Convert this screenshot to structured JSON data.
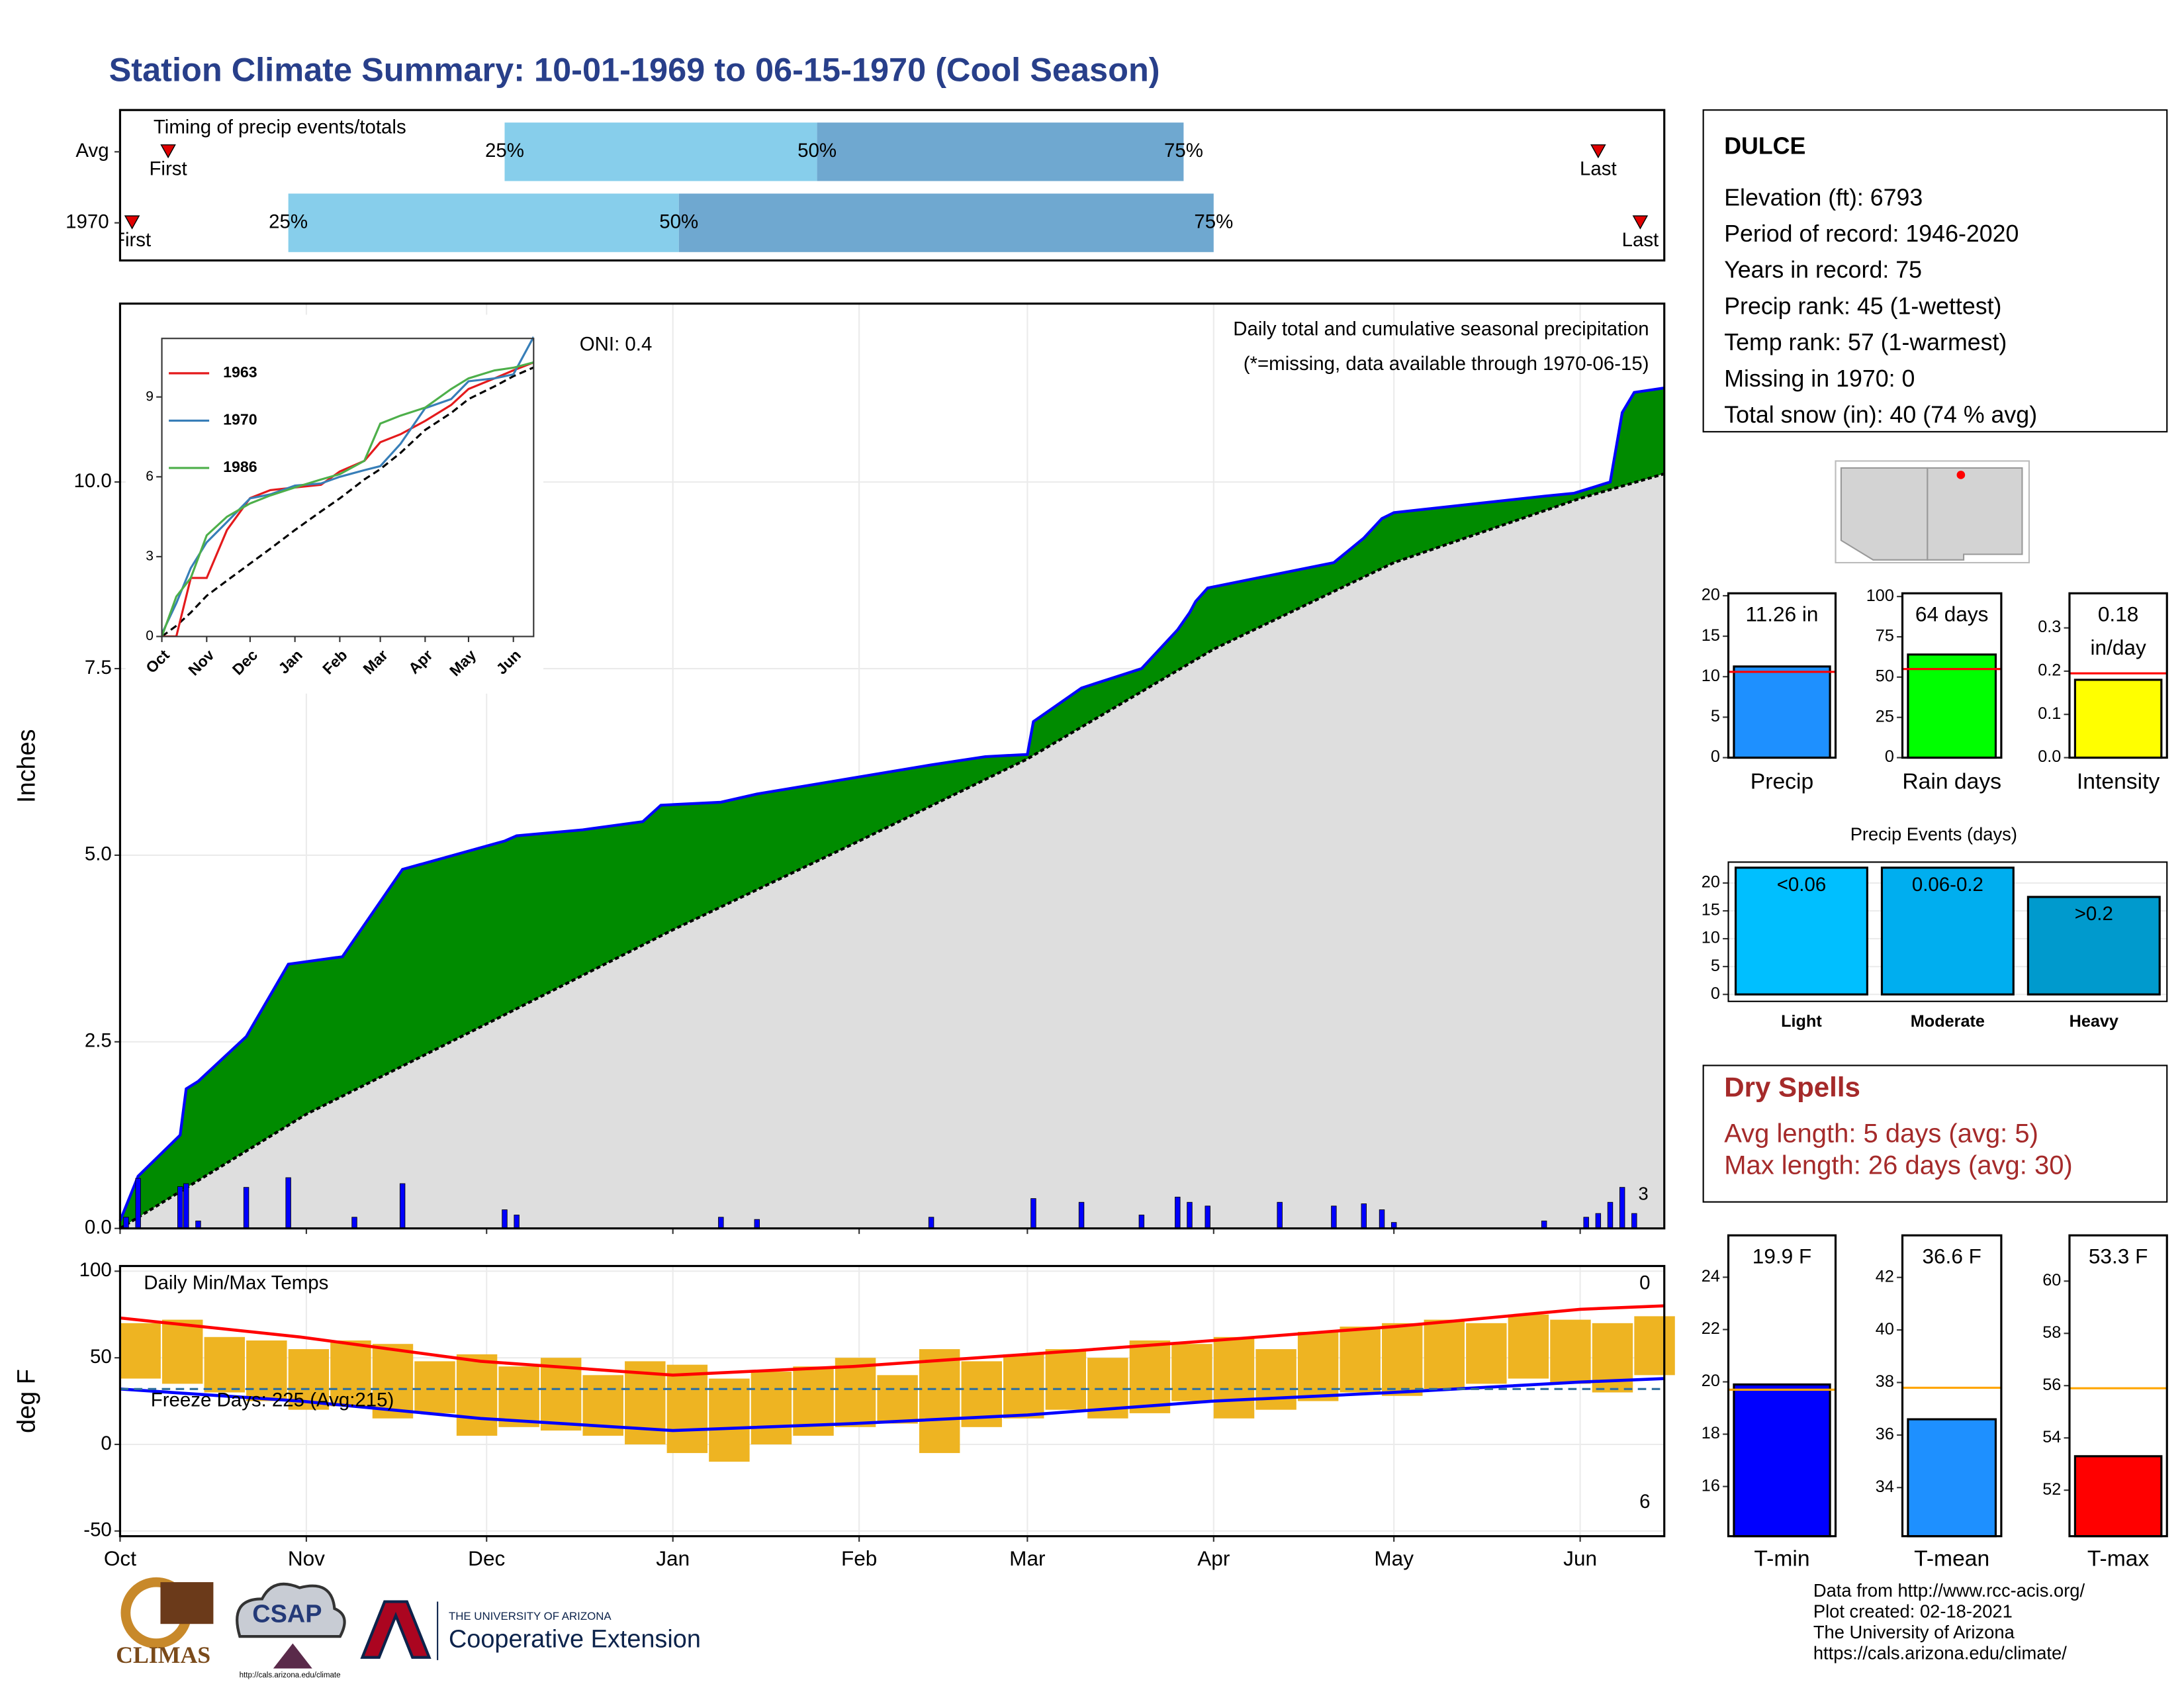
{
  "title": "Station Climate Summary: 10-01-1969 to 06-15-1970 (Cool Season)",
  "station": {
    "name": "DULCE",
    "lines": [
      "Elevation (ft): 6793",
      "Period of record: 1946-2020",
      "Years in record: 75",
      "Precip rank: 45 (1-wettest)",
      "Temp rank: 57 (1-warmest)",
      "Missing in 1970: 0",
      "Total snow (in): 40 (74 % avg)"
    ]
  },
  "dry_spells": {
    "title": "Dry Spells",
    "lines": [
      "Avg length: 5 days (avg: 5)",
      "Max length: 26 days (avg: 30)"
    ]
  },
  "footer": {
    "lines": [
      "Data from http://www.rcc-acis.org/",
      "Plot created: 02-18-2021",
      "The University of Arizona",
      "https://cals.arizona.edu/climate/"
    ]
  },
  "logos": {
    "climas": "CLIMAS",
    "csap": "CSAP",
    "csap_url": "http://cals.arizona.edu/climate",
    "university": "THE UNIVERSITY OF ARIZONA",
    "extension": "Cooperative Extension"
  },
  "chart_data": [
    {
      "type": "timing",
      "title": "Timing of precip events/totals",
      "rows": [
        "Avg",
        "1970"
      ],
      "xlim": [
        0,
        257
      ],
      "first": [
        8,
        2
      ],
      "q25": [
        64,
        28
      ],
      "q50": [
        116,
        93
      ],
      "q75": [
        177,
        182
      ],
      "last": [
        246,
        253
      ],
      "first_label": "First",
      "last_label": "Last",
      "quartile_labels": [
        "25%",
        "50%",
        "75%"
      ],
      "colors": [
        "#87ceeb",
        "#6fa8d0"
      ],
      "marker_color": "#e00000"
    },
    {
      "type": "area",
      "title": "Daily total and cumulative seasonal precipitation",
      "subtitle": "(*=missing, data available through 1970-06-15)",
      "annotation": "ONI: 0.4",
      "corner_note": "3",
      "ylabel": "Inches",
      "xlim": [
        0,
        257
      ],
      "ylim": [
        0,
        12.39
      ],
      "yticks": [
        {
          "value": 0,
          "label": "0.0"
        },
        {
          "value": 2.5,
          "label": "2.5"
        },
        {
          "value": 5,
          "label": "5.0"
        },
        {
          "value": 7.5,
          "label": "7.5"
        },
        {
          "value": 10,
          "label": "10.0"
        }
      ],
      "grid": true,
      "colors": {
        "above": "#008b00",
        "below": "#8b5a2b",
        "common": "#dedede",
        "line": "#0000ff",
        "average_line": "#000000",
        "daily": "#0000ff"
      },
      "cumulative": {
        "x": [
          0,
          3,
          10,
          11,
          13,
          21,
          28,
          37,
          47,
          64,
          66,
          77,
          87,
          90,
          100,
          106,
          135,
          144,
          151,
          152,
          160,
          170,
          176,
          178,
          179,
          181,
          202,
          207,
          210,
          212,
          237,
          242,
          248,
          250,
          252,
          257
        ],
        "values": [
          0.1,
          0.7,
          1.25,
          1.87,
          1.97,
          2.57,
          3.54,
          3.64,
          4.81,
          5.19,
          5.26,
          5.34,
          5.45,
          5.67,
          5.71,
          5.82,
          6.21,
          6.32,
          6.35,
          6.79,
          7.24,
          7.5,
          8.02,
          8.25,
          8.4,
          8.58,
          8.92,
          9.25,
          9.51,
          9.59,
          9.81,
          9.85,
          10.0,
          10.93,
          11.2,
          11.26
        ]
      },
      "average": {
        "x": [
          0,
          31,
          61,
          92,
          123,
          151,
          182,
          212,
          243,
          257
        ],
        "values": [
          0,
          1.53,
          2.74,
          4.0,
          5.19,
          6.29,
          7.76,
          8.92,
          9.78,
          10.11
        ]
      },
      "daily": {
        "x": [
          1,
          3,
          10,
          11,
          13,
          21,
          28,
          39,
          47,
          64,
          66,
          100,
          106,
          135,
          152,
          160,
          170,
          176,
          178,
          181,
          193,
          202,
          207,
          210,
          212,
          237,
          244,
          246,
          248,
          250,
          252
        ],
        "values": [
          0.15,
          0.67,
          0.56,
          0.6,
          0.1,
          0.55,
          0.68,
          0.15,
          0.6,
          0.25,
          0.18,
          0.15,
          0.12,
          0.15,
          0.4,
          0.35,
          0.18,
          0.42,
          0.35,
          0.3,
          0.35,
          0.3,
          0.33,
          0.25,
          0.08,
          0.1,
          0.15,
          0.2,
          0.35,
          0.55,
          0.2
        ]
      }
    },
    {
      "type": "line",
      "xlim": [
        0,
        257
      ],
      "ylim": [
        0,
        11.2
      ],
      "yticks": [
        0,
        3,
        6,
        9
      ],
      "xticks": [
        {
          "value": 0,
          "label": "Oct"
        },
        {
          "value": 31,
          "label": "Nov"
        },
        {
          "value": 61,
          "label": "Dec"
        },
        {
          "value": 92,
          "label": "Jan"
        },
        {
          "value": 123,
          "label": "Feb"
        },
        {
          "value": 151,
          "label": "Mar"
        },
        {
          "value": 182,
          "label": "Apr"
        },
        {
          "value": 212,
          "label": "May"
        },
        {
          "value": 243,
          "label": "Jun"
        }
      ],
      "x": [
        0,
        10,
        20,
        31,
        45,
        61,
        75,
        92,
        110,
        123,
        140,
        151,
        165,
        182,
        200,
        212,
        230,
        243,
        257
      ],
      "series": [
        {
          "name": "1963",
          "color": "#e41a1c",
          "values": [
            0,
            0,
            2.2,
            2.2,
            4.0,
            5.2,
            5.5,
            5.6,
            5.7,
            6.2,
            6.6,
            7.3,
            7.6,
            8.1,
            8.7,
            9.3,
            9.7,
            10.0,
            10.3
          ]
        },
        {
          "name": "1970",
          "color": "#377eb8",
          "values": [
            0.1,
            1.25,
            2.57,
            3.54,
            4.3,
            5.19,
            5.34,
            5.67,
            5.75,
            6.0,
            6.25,
            6.4,
            7.24,
            8.58,
            8.92,
            9.59,
            9.7,
            9.85,
            11.26
          ]
        },
        {
          "name": "1986",
          "color": "#4daf4a",
          "values": [
            0,
            1.5,
            2.2,
            3.8,
            4.5,
            5.0,
            5.3,
            5.6,
            5.9,
            6.1,
            6.6,
            8.0,
            8.3,
            8.6,
            9.3,
            9.7,
            10.0,
            10.1,
            10.3
          ]
        }
      ],
      "average": {
        "color": "#000000",
        "values": [
          0,
          0.4,
          0.9,
          1.53,
          2.1,
          2.74,
          3.3,
          4.0,
          4.7,
          5.19,
          5.9,
          6.29,
          6.9,
          7.76,
          8.4,
          8.92,
          9.4,
          9.78,
          10.11
        ]
      }
    },
    {
      "type": "range_bar",
      "title": "Daily Min/Max Temps",
      "ylabel": "deg F",
      "annotation": "Freeze Days: 225 (Avg:215)",
      "top_note": "0",
      "bottom_note": "6",
      "xlim": [
        0,
        257
      ],
      "ylim": [
        -53,
        103
      ],
      "yticks": [
        -50,
        0,
        50,
        100
      ],
      "grid": true,
      "freeze": 32,
      "xticks": [
        {
          "value": 0,
          "label": "Oct"
        },
        {
          "value": 31,
          "label": "Nov"
        },
        {
          "value": 61,
          "label": "Dec"
        },
        {
          "value": 92,
          "label": "Jan"
        },
        {
          "value": 123,
          "label": "Feb"
        },
        {
          "value": 151,
          "label": "Mar"
        },
        {
          "value": 182,
          "label": "Apr"
        },
        {
          "value": 212,
          "label": "May"
        },
        {
          "value": 243,
          "label": "Jun"
        }
      ],
      "bars": {
        "color": "#eeb422",
        "x": [
          0,
          7,
          14,
          21,
          28,
          35,
          42,
          49,
          56,
          63,
          70,
          77,
          84,
          91,
          98,
          105,
          112,
          119,
          126,
          133,
          140,
          147,
          154,
          161,
          168,
          175,
          182,
          189,
          196,
          203,
          210,
          217,
          224,
          231,
          238,
          245,
          252
        ],
        "max": [
          70,
          72,
          62,
          60,
          55,
          60,
          58,
          48,
          52,
          45,
          50,
          40,
          48,
          46,
          38,
          42,
          45,
          50,
          40,
          55,
          48,
          52,
          55,
          50,
          60,
          58,
          62,
          55,
          65,
          68,
          70,
          72,
          70,
          75,
          72,
          70,
          74
        ],
        "min": [
          38,
          35,
          30,
          25,
          20,
          22,
          15,
          18,
          5,
          10,
          8,
          5,
          0,
          -5,
          -10,
          0,
          5,
          10,
          12,
          -5,
          10,
          15,
          20,
          15,
          18,
          25,
          15,
          20,
          25,
          30,
          28,
          32,
          35,
          38,
          35,
          30,
          40
        ]
      },
      "normal_max": {
        "color": "#ff0000",
        "x": [
          0,
          30,
          60,
          92,
          122,
          151,
          182,
          212,
          243,
          257
        ],
        "values": [
          73,
          62,
          48,
          40,
          45,
          52,
          60,
          68,
          78,
          80
        ]
      },
      "normal_min": {
        "color": "#0000ff",
        "x": [
          0,
          30,
          60,
          92,
          122,
          151,
          182,
          212,
          243,
          257
        ],
        "values": [
          32,
          25,
          15,
          8,
          12,
          17,
          25,
          30,
          36,
          38
        ]
      },
      "freeze_color": "#2f6f9f"
    },
    {
      "type": "single_bar",
      "category": "Precip",
      "value": 11.26,
      "value_label": "11.26 in",
      "avg": 10.6,
      "color": "#1e90ff",
      "avg_color": "#ff0000",
      "ylim": [
        0,
        20.3
      ],
      "yticks": [
        0,
        5,
        10,
        15,
        20
      ]
    },
    {
      "type": "single_bar",
      "category": "Rain days",
      "value": 64,
      "value_label": "64 days",
      "avg": 55,
      "color": "#00ff00",
      "avg_color": "#ff0000",
      "ylim": [
        0,
        102
      ],
      "yticks": [
        0,
        25,
        50,
        75,
        100
      ]
    },
    {
      "type": "single_bar",
      "category": "Intensity",
      "value": 0.18,
      "value_label": "0.18 in/day",
      "avg": 0.195,
      "color": "#ffff00",
      "avg_color": "#ff0000",
      "ylim": [
        0,
        0.38
      ],
      "yticks": [
        {
          "value": 0,
          "label": "0.0"
        },
        0.1,
        0.2,
        0.3
      ]
    },
    {
      "type": "bar",
      "title": "Precip Events (days)",
      "categories": [
        "Light",
        "Moderate",
        "Heavy"
      ],
      "bin_labels": [
        "<0.06",
        "0.06-0.2",
        ">0.2"
      ],
      "values": [
        22.75,
        22.75,
        17.5
      ],
      "colors": [
        "#00bfff",
        "#00aeef",
        "#009acd"
      ],
      "ylim": [
        -1.25,
        23.75
      ],
      "yticks": [
        0,
        5,
        10,
        15,
        20
      ],
      "grid": true
    },
    {
      "type": "single_bar",
      "category": "T-min",
      "value": 19.9,
      "value_label": "19.9 F",
      "avg": 19.7,
      "color": "#0000ff",
      "avg_color": "#ffa500",
      "ylim": [
        14.1,
        25.6
      ],
      "yticks": [
        16,
        18,
        20,
        22,
        24
      ]
    },
    {
      "type": "single_bar",
      "category": "T-mean",
      "value": 36.6,
      "value_label": "36.6 F",
      "avg": 37.8,
      "color": "#1e90ff",
      "avg_color": "#ffa500",
      "ylim": [
        32.15,
        43.6
      ],
      "yticks": [
        34,
        36,
        38,
        40,
        42
      ]
    },
    {
      "type": "single_bar",
      "category": "T-max",
      "value": 53.3,
      "value_label": "53.3 F",
      "avg": 55.9,
      "color": "#ff0000",
      "avg_color": "#ffa500",
      "ylim": [
        50.24,
        61.75
      ],
      "yticks": [
        52,
        54,
        56,
        58,
        60
      ]
    }
  ]
}
